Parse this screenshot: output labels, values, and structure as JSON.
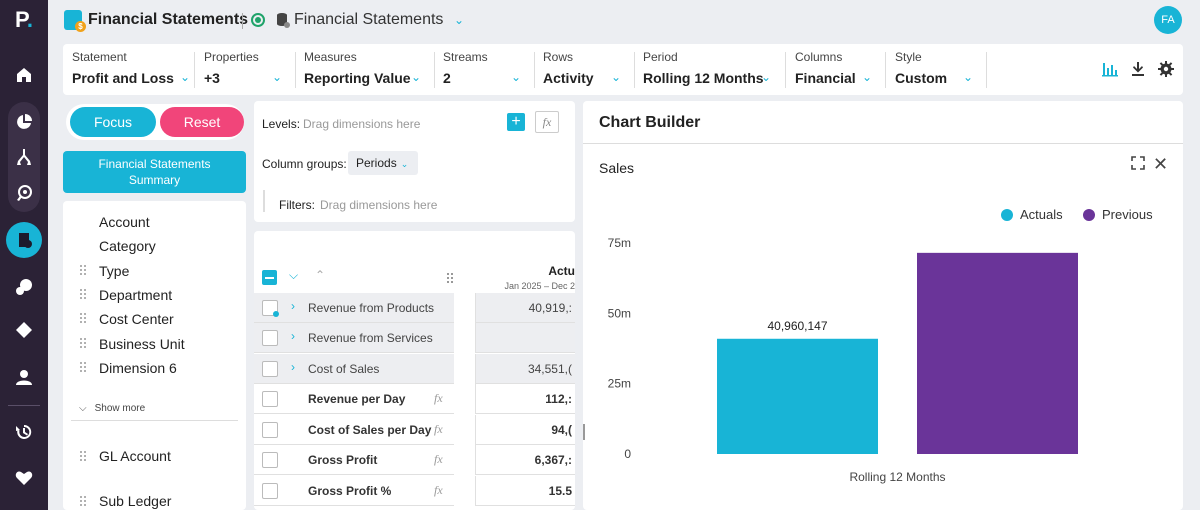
{
  "app": {
    "logo": "P",
    "title": "Financial Statements",
    "document_title": "Financial Statements",
    "avatar_initials": "FA"
  },
  "filters": [
    {
      "label": "Statement",
      "value": "Profit and Loss"
    },
    {
      "label": "Properties",
      "value": "+3"
    },
    {
      "label": "Measures",
      "value": "Reporting Value"
    },
    {
      "label": "Streams",
      "value": "2"
    },
    {
      "label": "Rows",
      "value": "Activity"
    },
    {
      "label": "Period",
      "value": "Rolling 12 Months"
    },
    {
      "label": "Columns",
      "value": "Financial"
    },
    {
      "label": "Style",
      "value": "Custom"
    }
  ],
  "left": {
    "focus_label": "Focus",
    "reset_label": "Reset",
    "summary_title": "Financial Statements",
    "summary_subtitle": "Summary",
    "dimensions": [
      "Account",
      "Category",
      "Type",
      "Department",
      "Cost Center",
      "Business Unit",
      "Dimension 6"
    ],
    "show_more": "Show more",
    "extra_dimensions": [
      "GL Account",
      "Sub Ledger"
    ]
  },
  "layout": {
    "levels_label": "Levels:",
    "levels_hint": "Drag dimensions here",
    "column_groups_label": "Column groups:",
    "column_groups_value": "Periods",
    "filters_label": "Filters:",
    "filters_hint": "Drag dimensions here",
    "fx_label": "fx"
  },
  "grid": {
    "column_header": "Actu",
    "column_period": "Jan 2025 – Dec 2",
    "rows": [
      {
        "name": "Revenue from Products",
        "value": "40,919,:",
        "expandable": true,
        "formula": false
      },
      {
        "name": "Revenue from Services",
        "value": "",
        "expandable": true,
        "formula": false
      },
      {
        "name": "Cost of Sales",
        "value": "34,551,(",
        "expandable": true,
        "formula": false
      },
      {
        "name": "Revenue per Day",
        "value": "112,:",
        "expandable": false,
        "formula": true
      },
      {
        "name": "Cost of Sales per Day",
        "value": "94,(",
        "expandable": false,
        "formula": true
      },
      {
        "name": "Gross Profit",
        "value": "6,367,:",
        "expandable": false,
        "formula": true
      },
      {
        "name": "Gross Profit %",
        "value": "15.5",
        "expandable": false,
        "formula": true
      }
    ]
  },
  "chart_panel": {
    "title": "Chart Builder",
    "chart_title": "Sales"
  },
  "chart_data": {
    "type": "bar",
    "title": "Sales",
    "categories": [
      "Rolling 12 Months"
    ],
    "series": [
      {
        "name": "Actuals",
        "values": [
          40960147
        ],
        "color": "#18b4d6",
        "data_label": "40,960,147"
      },
      {
        "name": "Previous",
        "values": [
          71500000
        ],
        "color": "#6a3499",
        "data_label": ""
      }
    ],
    "yticks": [
      {
        "value": 0,
        "label": "0"
      },
      {
        "value": 25000000,
        "label": "25m"
      },
      {
        "value": 50000000,
        "label": "50m"
      },
      {
        "value": 75000000,
        "label": "75m"
      }
    ],
    "ylim": [
      0,
      75000000
    ],
    "legend": "top-right",
    "grid": false
  }
}
